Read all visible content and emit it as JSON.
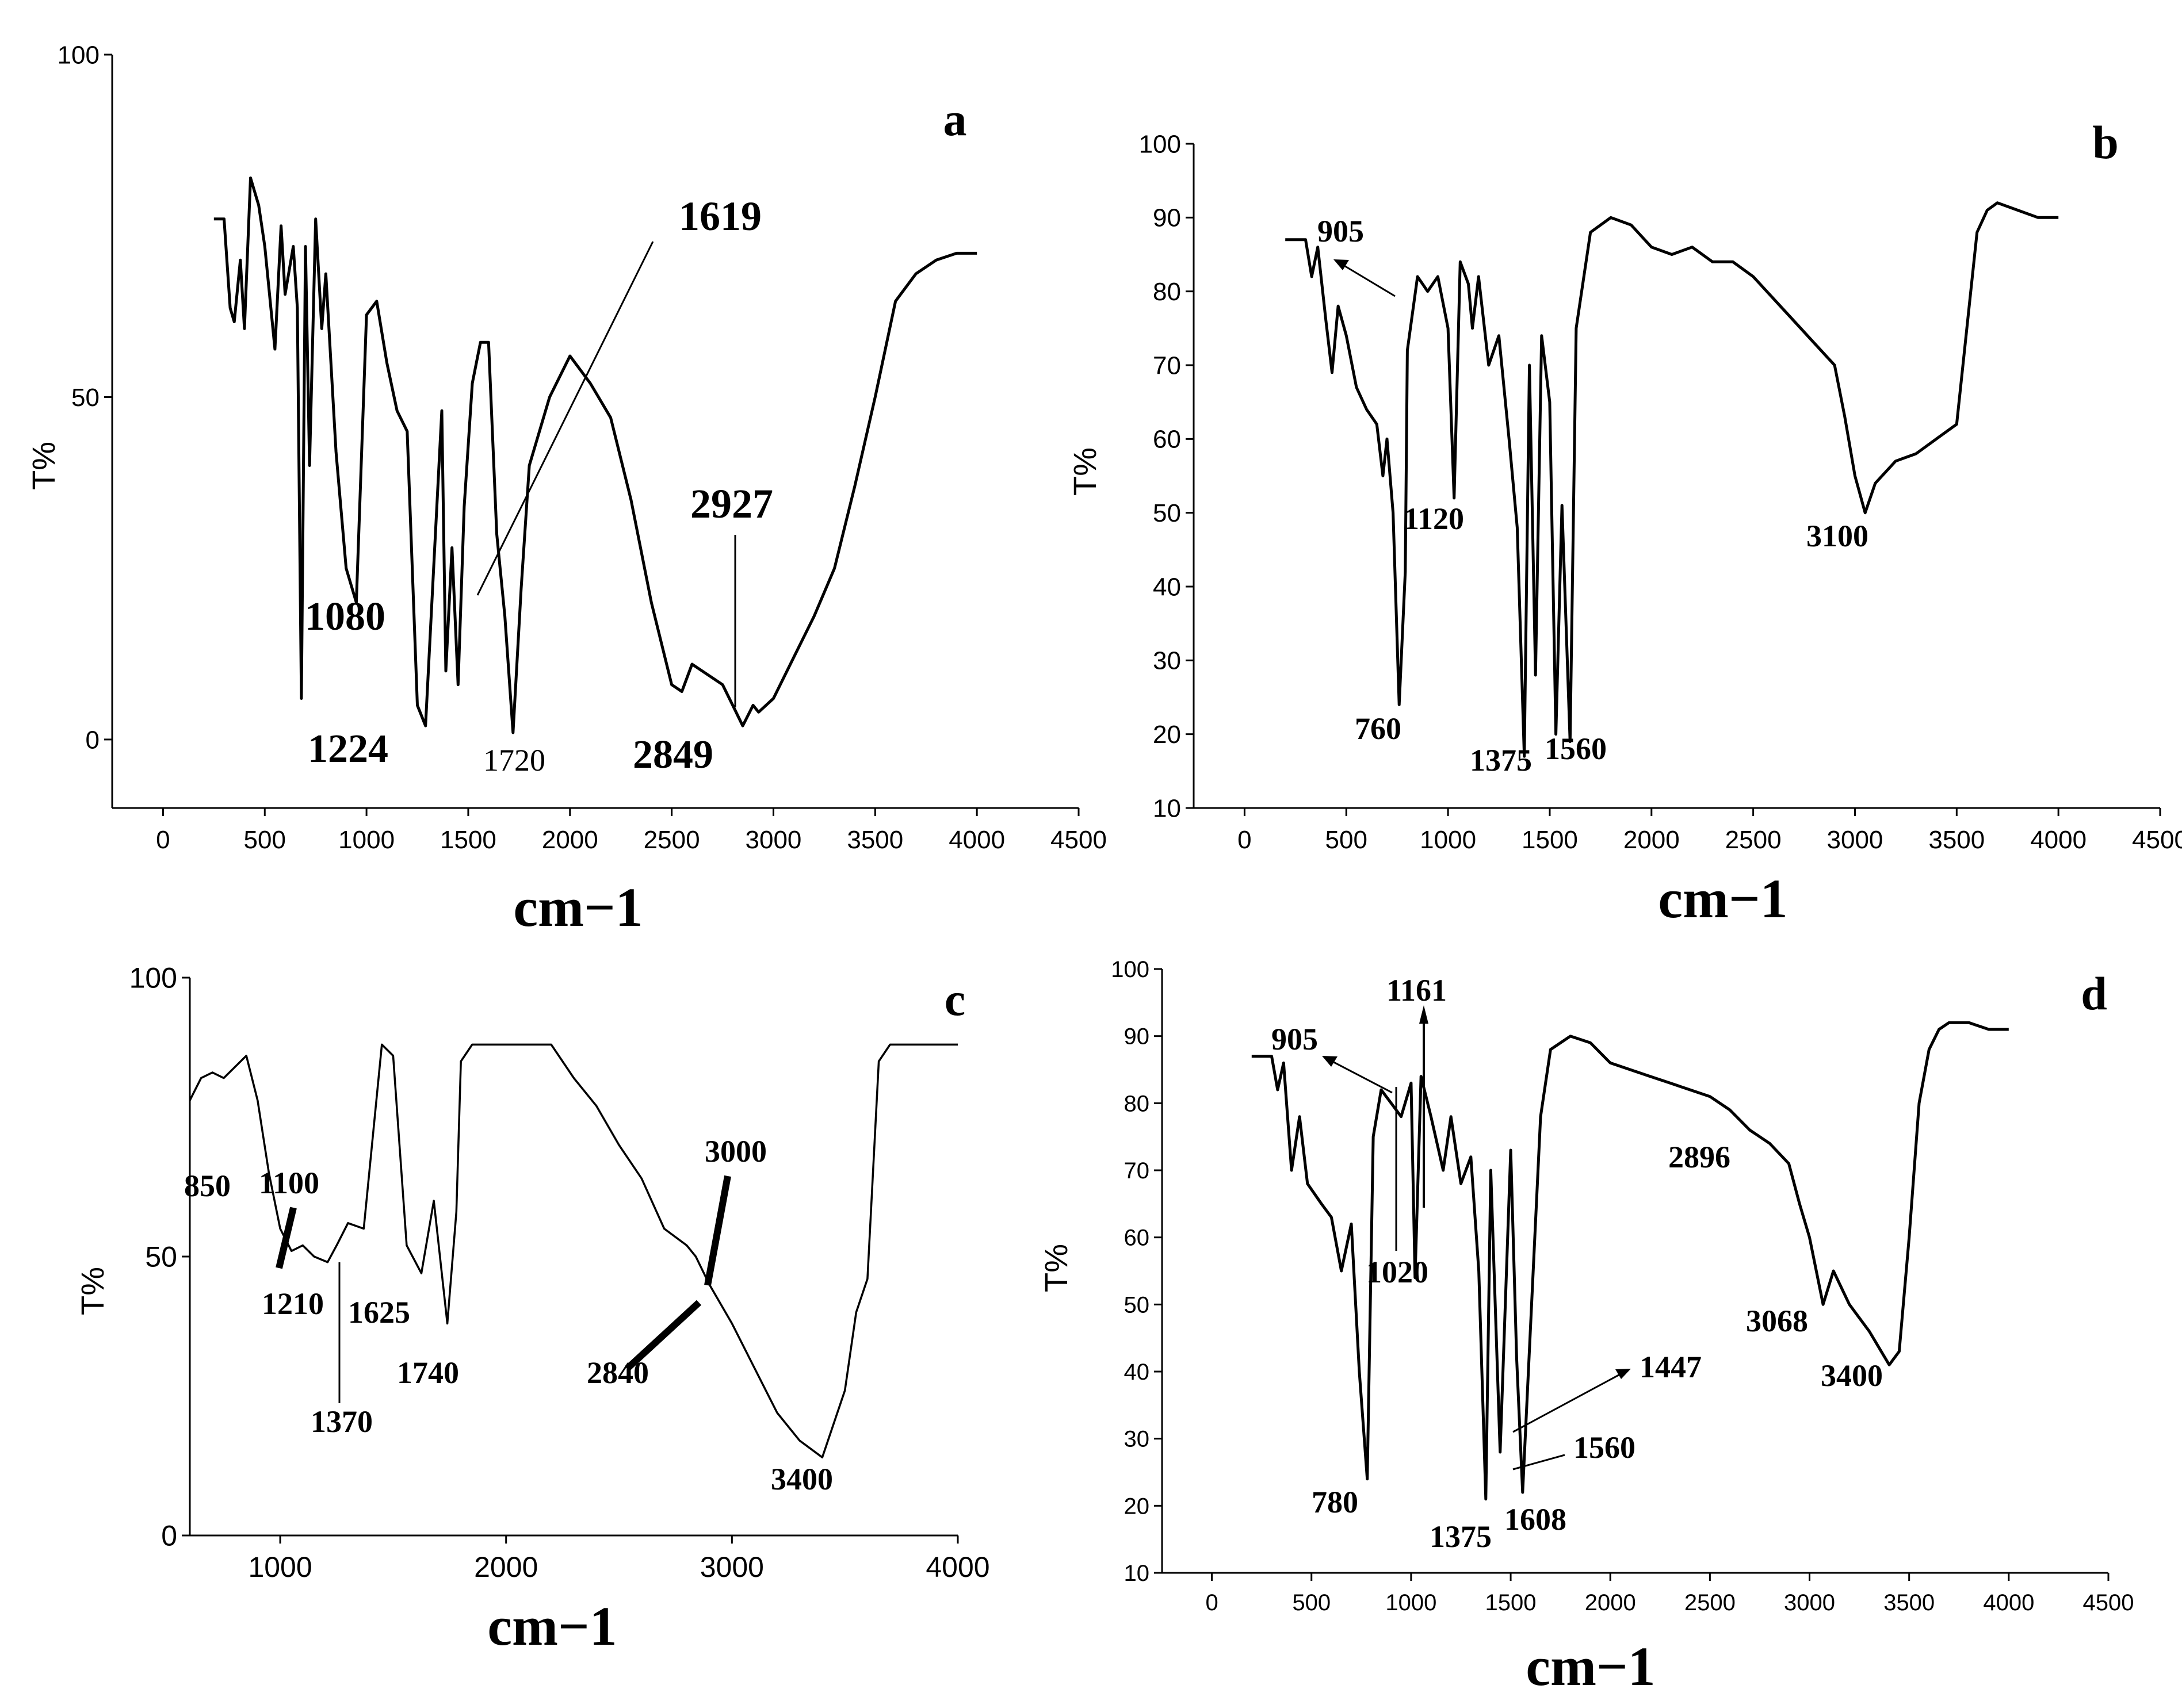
{
  "chart_data": [
    {
      "type": "line",
      "panel": "a",
      "ylabel": "T%",
      "xlabel": "cm−1",
      "xlim": [
        -250,
        4500
      ],
      "ylim": [
        -10,
        100
      ],
      "xticks": [
        0,
        500,
        1000,
        1500,
        2000,
        2500,
        3000,
        3500,
        4000,
        4500
      ],
      "yticks": [
        0,
        50,
        100
      ],
      "series": [
        {
          "name": "a",
          "x": [
            250,
            300,
            330,
            350,
            380,
            400,
            430,
            470,
            500,
            550,
            580,
            600,
            640,
            660,
            680,
            700,
            720,
            750,
            780,
            800,
            850,
            900,
            950,
            1000,
            1050,
            1100,
            1150,
            1200,
            1250,
            1290,
            1330,
            1370,
            1390,
            1420,
            1450,
            1480,
            1520,
            1560,
            1600,
            1640,
            1680,
            1720,
            1760,
            1800,
            1900,
            2000,
            2100,
            2200,
            2300,
            2400,
            2500,
            2550,
            2600,
            2650,
            2700,
            2750,
            2800,
            2849,
            2900,
            2927,
            3000,
            3100,
            3200,
            3300,
            3400,
            3500,
            3600,
            3700,
            3800,
            3900,
            4000
          ],
          "y": [
            76,
            76,
            63,
            61,
            70,
            60,
            82,
            78,
            72,
            57,
            75,
            65,
            72,
            63,
            6,
            72,
            40,
            76,
            60,
            68,
            42,
            25,
            20,
            62,
            64,
            55,
            48,
            45,
            5,
            2,
            25,
            48,
            10,
            28,
            8,
            34,
            52,
            58,
            58,
            30,
            18,
            1,
            22,
            40,
            50,
            56,
            52,
            47,
            35,
            20,
            8,
            7,
            11,
            10,
            9,
            8,
            5,
            2,
            5,
            4,
            6,
            12,
            18,
            25,
            37,
            50,
            64,
            68,
            70,
            71,
            71
          ]
        }
      ],
      "annotations": [
        "1080",
        "1224",
        "1720",
        "1619",
        "2927",
        "2849"
      ],
      "panel_label": "a"
    },
    {
      "type": "line",
      "panel": "b",
      "ylabel": "T%",
      "xlabel": "cm−1",
      "xlim": [
        -250,
        4500
      ],
      "ylim": [
        10,
        100
      ],
      "xticks": [
        0,
        500,
        1000,
        1500,
        2000,
        2500,
        3000,
        3500,
        4000,
        4500
      ],
      "yticks": [
        10,
        20,
        30,
        40,
        50,
        60,
        70,
        80,
        90,
        100
      ],
      "series": [
        {
          "name": "b",
          "x": [
            200,
            300,
            330,
            360,
            400,
            430,
            460,
            500,
            550,
            600,
            650,
            680,
            700,
            730,
            760,
            790,
            800,
            850,
            900,
            950,
            1000,
            1030,
            1060,
            1100,
            1120,
            1150,
            1200,
            1250,
            1300,
            1340,
            1375,
            1400,
            1430,
            1460,
            1500,
            1530,
            1560,
            1600,
            1630,
            1700,
            1800,
            1900,
            2000,
            2100,
            2200,
            2300,
            2400,
            2500,
            2600,
            2700,
            2800,
            2900,
            2950,
            3000,
            3050,
            3100,
            3200,
            3300,
            3400,
            3500,
            3550,
            3600,
            3650,
            3700,
            3800,
            3900,
            4000
          ],
          "y": [
            87,
            87,
            82,
            86,
            76,
            69,
            78,
            74,
            67,
            64,
            62,
            55,
            60,
            50,
            24,
            42,
            72,
            82,
            80,
            82,
            75,
            52,
            84,
            81,
            75,
            82,
            70,
            74,
            60,
            48,
            17,
            70,
            28,
            74,
            65,
            20,
            51,
            19,
            75,
            88,
            90,
            89,
            86,
            85,
            86,
            84,
            84,
            82,
            79,
            76,
            73,
            70,
            63,
            55,
            50,
            54,
            57,
            58,
            60,
            62,
            75,
            88,
            91,
            92,
            91,
            90,
            90
          ]
        }
      ],
      "annotations": [
        "905",
        "1120",
        "760",
        "1375",
        "1560",
        "3100"
      ],
      "panel_label": "b"
    },
    {
      "type": "line",
      "panel": "c",
      "ylabel": "T%",
      "xlabel": "cm−1",
      "xlim": [
        600,
        4000
      ],
      "ylim": [
        0,
        100
      ],
      "xticks": [
        1000,
        2000,
        3000,
        4000
      ],
      "yticks": [
        0,
        50,
        100
      ],
      "series": [
        {
          "name": "c",
          "x": [
            600,
            650,
            700,
            750,
            800,
            850,
            900,
            950,
            1000,
            1050,
            1100,
            1150,
            1210,
            1250,
            1300,
            1370,
            1450,
            1500,
            1560,
            1625,
            1680,
            1740,
            1780,
            1800,
            1850,
            1900,
            2000,
            2100,
            2200,
            2300,
            2400,
            2500,
            2600,
            2700,
            2800,
            2840,
            2900,
            3000,
            3100,
            3200,
            3300,
            3400,
            3500,
            3550,
            3600,
            3650,
            3700,
            3800,
            3900,
            4000
          ],
          "y": [
            78,
            82,
            83,
            82,
            84,
            86,
            78,
            65,
            55,
            51,
            52,
            50,
            49,
            52,
            56,
            55,
            88,
            86,
            52,
            47,
            60,
            38,
            58,
            85,
            88,
            88,
            88,
            88,
            88,
            82,
            77,
            70,
            64,
            55,
            52,
            50,
            45,
            38,
            30,
            22,
            17,
            14,
            26,
            40,
            46,
            85,
            88,
            88,
            88,
            88
          ]
        }
      ],
      "annotations": [
        "850",
        "1100",
        "1210",
        "1370",
        "1625",
        "1740",
        "3000",
        "2840",
        "3400"
      ],
      "panel_label": "c"
    },
    {
      "type": "line",
      "panel": "d",
      "ylabel": "T%",
      "xlabel": "cm−1",
      "xlim": [
        -250,
        4500
      ],
      "ylim": [
        10,
        100
      ],
      "xticks": [
        0,
        500,
        1000,
        1500,
        2000,
        2500,
        3000,
        3500,
        4000,
        4500
      ],
      "yticks": [
        10,
        20,
        30,
        40,
        50,
        60,
        70,
        80,
        90,
        100
      ],
      "series": [
        {
          "name": "d",
          "x": [
            200,
            300,
            330,
            360,
            400,
            440,
            480,
            550,
            600,
            650,
            700,
            740,
            780,
            810,
            850,
            900,
            950,
            1000,
            1020,
            1050,
            1100,
            1161,
            1200,
            1250,
            1300,
            1340,
            1375,
            1400,
            1447,
            1500,
            1530,
            1560,
            1608,
            1650,
            1700,
            1800,
            1900,
            2000,
            2100,
            2200,
            2300,
            2400,
            2500,
            2600,
            2700,
            2800,
            2896,
            2950,
            3000,
            3068,
            3120,
            3200,
            3300,
            3400,
            3450,
            3500,
            3550,
            3600,
            3650,
            3700,
            3800,
            3900,
            4000
          ],
          "y": [
            87,
            87,
            82,
            86,
            70,
            78,
            68,
            65,
            63,
            55,
            62,
            40,
            24,
            75,
            82,
            80,
            78,
            83,
            54,
            84,
            78,
            70,
            78,
            68,
            72,
            55,
            21,
            70,
            28,
            73,
            42,
            22,
            52,
            78,
            88,
            90,
            89,
            86,
            85,
            84,
            83,
            82,
            81,
            79,
            76,
            74,
            71,
            65,
            60,
            50,
            55,
            50,
            46,
            41,
            43,
            60,
            80,
            88,
            91,
            92,
            92,
            91,
            91
          ]
        }
      ],
      "annotations": [
        "905",
        "1161",
        "1020",
        "780",
        "1375",
        "1608",
        "1447",
        "1560",
        "2896",
        "3068",
        "3400"
      ],
      "panel_label": "d"
    }
  ]
}
